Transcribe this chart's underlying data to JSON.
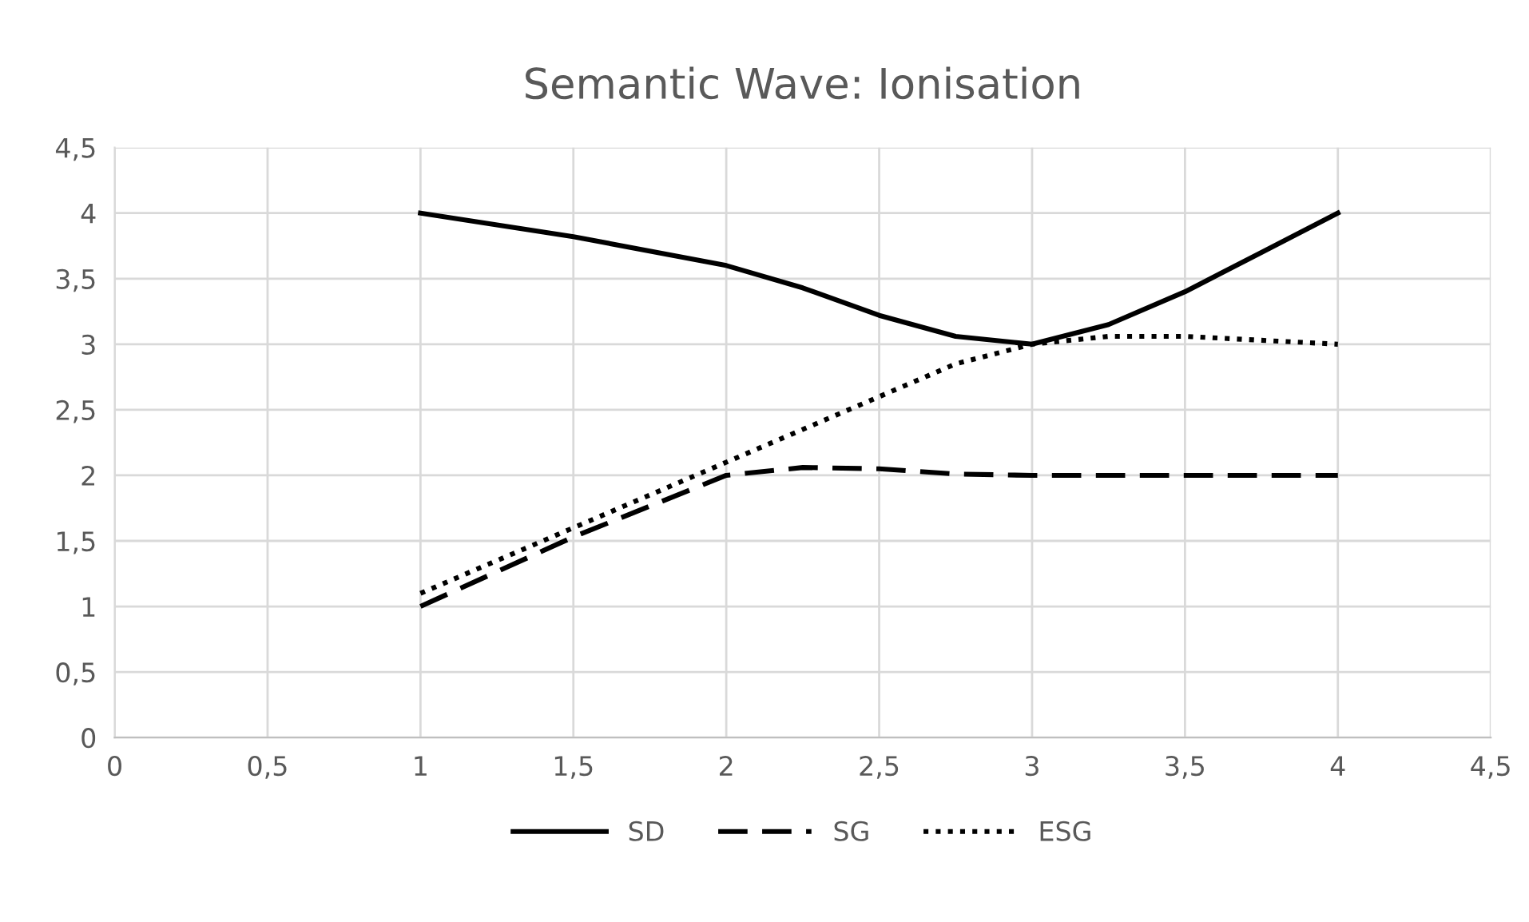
{
  "chart_data": {
    "type": "line",
    "title": "Semantic Wave: Ionisation",
    "series": [
      {
        "name": "SD",
        "color": "#000000",
        "line_style": "solid",
        "x": [
          1,
          1.5,
          2,
          2.25,
          2.5,
          2.75,
          3,
          3.25,
          3.5,
          3.75,
          4
        ],
        "values": [
          4,
          3.82,
          3.6,
          3.43,
          3.22,
          3.06,
          3,
          3.15,
          3.4,
          3.7,
          4
        ]
      },
      {
        "name": "SG",
        "color": "#000000",
        "line_style": "dashed",
        "x": [
          1,
          1.5,
          2,
          2.25,
          2.5,
          2.75,
          3,
          3.5,
          4
        ],
        "values": [
          1,
          1.53,
          2,
          2.06,
          2.05,
          2.01,
          2,
          2,
          2
        ]
      },
      {
        "name": "ESG",
        "color": "#000000",
        "line_style": "dotted",
        "x": [
          1,
          1.5,
          2,
          2.5,
          2.75,
          3,
          3.25,
          3.5,
          3.75,
          4
        ],
        "values": [
          1.1,
          1.6,
          2.1,
          2.6,
          2.85,
          3,
          3.06,
          3.06,
          3.03,
          3
        ]
      }
    ],
    "xlim": [
      0,
      4.5
    ],
    "xticks": [
      0,
      {
        "value": 0.5,
        "label": "0,5"
      },
      1,
      {
        "value": 1.5,
        "label": "1,5"
      },
      2,
      {
        "value": 2.5,
        "label": "2,5"
      },
      3,
      {
        "value": 3.5,
        "label": "3,5"
      },
      4,
      {
        "value": 4.5,
        "label": "4,5"
      }
    ],
    "ylim": [
      0,
      4.5
    ],
    "yticks": [
      0,
      {
        "value": 0.5,
        "label": "0,5"
      },
      1,
      {
        "value": 1.5,
        "label": "1,5"
      },
      2,
      {
        "value": 2.5,
        "label": "2,5"
      },
      3,
      {
        "value": 3.5,
        "label": "3,5"
      },
      4,
      {
        "value": 4.5,
        "label": "4,5"
      }
    ],
    "grid": true,
    "legend": "bottom",
    "marker": "none"
  }
}
